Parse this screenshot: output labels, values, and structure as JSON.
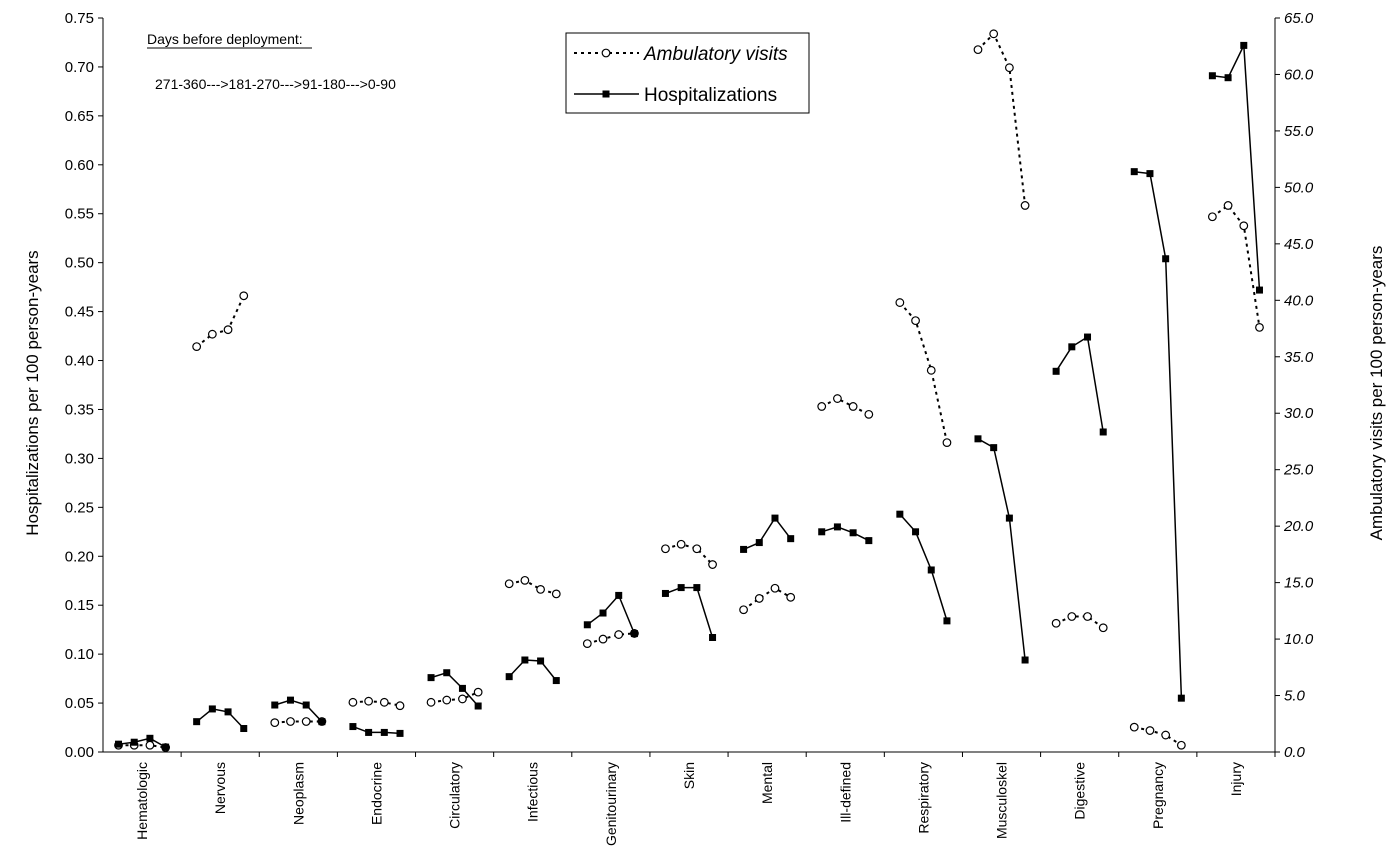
{
  "chart_data": {
    "type": "line",
    "categories": [
      "Hematologic",
      "Nervous",
      "Neoplasm",
      "Endocrine",
      "Circulatory",
      "Infectious",
      "Genitourinary",
      "Skin",
      "Mental",
      "Ill-defined",
      "Respiratory",
      "Musculoskel",
      "Digestive",
      "Pregnancy",
      "Injury"
    ],
    "sub_periods": [
      "271-360",
      "181-270",
      "91-180",
      "0-90"
    ],
    "ylabel_left": "Hospitalizations per 100 person-years",
    "ylabel_right": "Ambulatory visits per 100 person-years",
    "ylim_left": [
      0,
      0.75
    ],
    "ylim_right": [
      0,
      65
    ],
    "yticks_left": [
      "0.00",
      "0.05",
      "0.10",
      "0.15",
      "0.20",
      "0.25",
      "0.30",
      "0.35",
      "0.40",
      "0.45",
      "0.50",
      "0.55",
      "0.60",
      "0.65",
      "0.70",
      "0.75"
    ],
    "yticks_right": [
      "0.0",
      "5.0",
      "10.0",
      "15.0",
      "20.0",
      "25.0",
      "30.0",
      "35.0",
      "40.0",
      "45.0",
      "50.0",
      "55.0",
      "60.0",
      "65.0"
    ],
    "annotation_title": "Days before deployment:",
    "annotation_sequence": "271-360--->181-270--->91-180--->0-90",
    "legend_position": "top-center",
    "series": [
      {
        "name": "Ambulatory visits",
        "axis": "right",
        "style": "dotted-open-circle",
        "values": [
          [
            0.6,
            0.6,
            0.6,
            0.4
          ],
          [
            35.9,
            37.0,
            37.4,
            40.4
          ],
          [
            2.6,
            2.7,
            2.7,
            2.7
          ],
          [
            4.4,
            4.5,
            4.4,
            4.1
          ],
          [
            4.4,
            4.6,
            4.7,
            5.3
          ],
          [
            14.9,
            15.2,
            14.4,
            14.0
          ],
          [
            9.6,
            10.0,
            10.4,
            10.5
          ],
          [
            18.0,
            18.4,
            18.0,
            16.6
          ],
          [
            12.6,
            13.6,
            14.5,
            13.7
          ],
          [
            30.6,
            31.3,
            30.6,
            29.9
          ],
          [
            39.8,
            38.2,
            33.8,
            27.4
          ],
          [
            62.2,
            63.6,
            60.6,
            48.4
          ],
          [
            11.4,
            12.0,
            12.0,
            11.0
          ],
          [
            2.2,
            1.9,
            1.5,
            0.6
          ],
          [
            47.4,
            48.4,
            46.6,
            37.6
          ]
        ]
      },
      {
        "name": "Hospitalizations",
        "axis": "left",
        "style": "solid-filled-square",
        "values": [
          [
            0.008,
            0.01,
            0.014,
            0.005
          ],
          [
            0.031,
            0.044,
            0.041,
            0.024
          ],
          [
            0.048,
            0.053,
            0.048,
            0.031
          ],
          [
            0.026,
            0.02,
            0.02,
            0.019
          ],
          [
            0.076,
            0.081,
            0.065,
            0.047
          ],
          [
            0.077,
            0.094,
            0.093,
            0.073
          ],
          [
            0.13,
            0.142,
            0.16,
            0.121
          ],
          [
            0.162,
            0.168,
            0.168,
            0.117
          ],
          [
            0.207,
            0.214,
            0.239,
            0.218
          ],
          [
            0.225,
            0.23,
            0.224,
            0.216
          ],
          [
            0.243,
            0.225,
            0.186,
            0.134
          ],
          [
            0.32,
            0.311,
            0.239,
            0.094
          ],
          [
            0.389,
            0.414,
            0.424,
            0.327
          ],
          [
            0.593,
            0.591,
            0.504,
            0.055
          ],
          [
            0.691,
            0.689,
            0.722,
            0.472
          ]
        ]
      }
    ],
    "colors": {
      "marks": "#000000",
      "background": "#ffffff"
    }
  }
}
